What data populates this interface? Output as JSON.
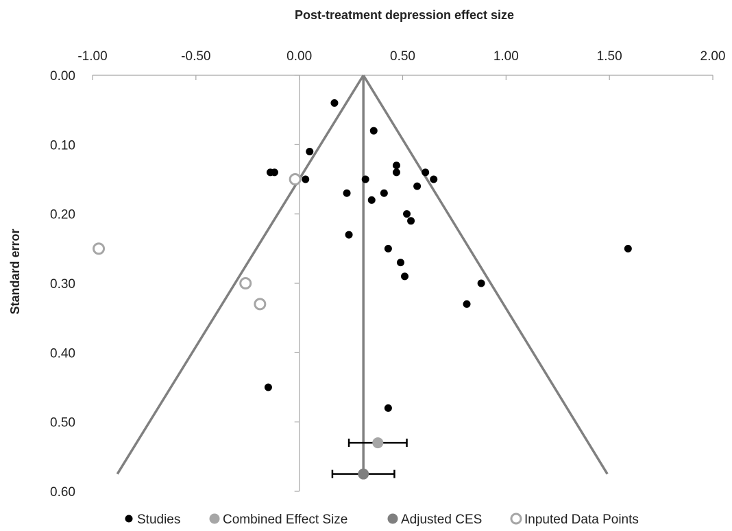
{
  "chart_data": {
    "type": "scatter",
    "title": "Post-treatment depression effect size",
    "xlabel": "Post-treatment depression effect size",
    "ylabel": "Standard error",
    "xlim": [
      -1.0,
      2.0
    ],
    "ylim": [
      0.0,
      0.6
    ],
    "y_inverted": true,
    "x_axis_position": "top",
    "x_ticks": [
      "-1.00",
      "-0.50",
      "0.00",
      "0.50",
      "1.00",
      "1.50",
      "2.00"
    ],
    "x_tick_values": [
      -1.0,
      -0.5,
      0.0,
      0.5,
      1.0,
      1.5,
      2.0
    ],
    "y_ticks": [
      "0.00",
      "0.10",
      "0.20",
      "0.30",
      "0.40",
      "0.50",
      "0.60"
    ],
    "y_tick_values": [
      0.0,
      0.1,
      0.2,
      0.3,
      0.4,
      0.5,
      0.6
    ],
    "legend_position": "bottom",
    "funnel": {
      "apex_x": 0.31,
      "apex_y": 0.0,
      "left_end": [
        -0.88,
        0.575
      ],
      "right_end": [
        1.49,
        0.575
      ],
      "center_line_bottom": 0.575,
      "color": "#808080"
    },
    "series": [
      {
        "name": "Studies",
        "marker": "filled",
        "color": "#000000",
        "points": [
          [
            0.17,
            0.04
          ],
          [
            0.36,
            0.08
          ],
          [
            0.05,
            0.11
          ],
          [
            -0.14,
            0.14
          ],
          [
            -0.12,
            0.14
          ],
          [
            0.03,
            0.15
          ],
          [
            0.32,
            0.15
          ],
          [
            0.47,
            0.13
          ],
          [
            0.47,
            0.14
          ],
          [
            0.61,
            0.14
          ],
          [
            0.65,
            0.15
          ],
          [
            0.57,
            0.16
          ],
          [
            0.23,
            0.17
          ],
          [
            0.41,
            0.17
          ],
          [
            0.35,
            0.18
          ],
          [
            0.52,
            0.2
          ],
          [
            0.54,
            0.21
          ],
          [
            0.24,
            0.23
          ],
          [
            0.43,
            0.25
          ],
          [
            1.59,
            0.25
          ],
          [
            0.49,
            0.27
          ],
          [
            0.51,
            0.29
          ],
          [
            0.88,
            0.3
          ],
          [
            0.81,
            0.33
          ],
          [
            -0.15,
            0.45
          ],
          [
            0.43,
            0.48
          ]
        ]
      },
      {
        "name": "Combined Effect Size",
        "marker": "filled",
        "color": "#a6a6a6",
        "points": [
          [
            0.38,
            0.53
          ]
        ],
        "ci": [
          0.24,
          0.52
        ]
      },
      {
        "name": "Adjusted CES",
        "marker": "filled",
        "color": "#7f7f7f",
        "points": [
          [
            0.31,
            0.575
          ]
        ],
        "ci": [
          0.16,
          0.46
        ]
      },
      {
        "name": "Inputed Data Points",
        "marker": "hollow",
        "color": "#a6a6a6",
        "points": [
          [
            -0.02,
            0.15
          ],
          [
            -0.97,
            0.25
          ],
          [
            -0.26,
            0.3
          ],
          [
            -0.19,
            0.33
          ]
        ]
      }
    ]
  }
}
